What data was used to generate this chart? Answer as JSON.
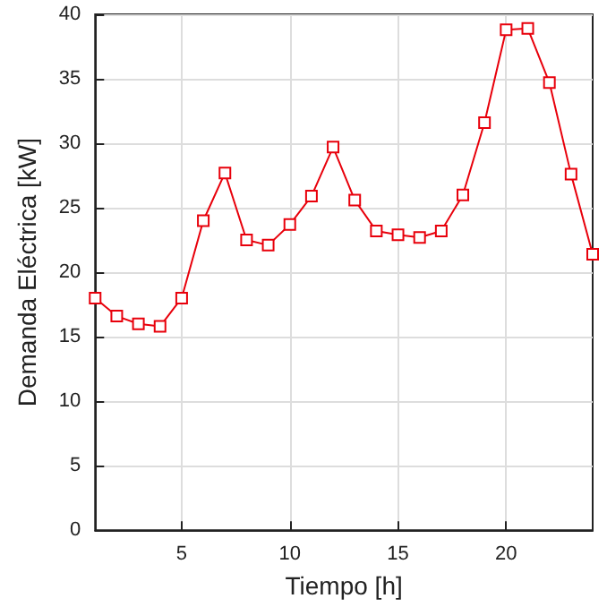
{
  "chart_data": {
    "type": "line",
    "xlabel": "Tiempo [h]",
    "ylabel": "Demanda Eléctrica [kW]",
    "x": [
      1,
      2,
      3,
      4,
      5,
      6,
      7,
      8,
      9,
      10,
      11,
      12,
      13,
      14,
      15,
      16,
      17,
      18,
      19,
      20,
      21,
      22,
      23,
      24
    ],
    "series": [
      {
        "color": "#e8000b",
        "values": [
          18,
          16.6,
          16,
          15.8,
          18,
          24,
          27.7,
          22.5,
          22.1,
          23.7,
          25.9,
          29.7,
          25.6,
          23.2,
          22.9,
          22.7,
          23.2,
          26,
          31.6,
          38.8,
          38.9,
          34.7,
          27.6,
          21.4
        ]
      }
    ],
    "xlim": [
      1,
      24
    ],
    "xticks": [
      5,
      10,
      15,
      20
    ],
    "ylim": [
      0,
      40
    ],
    "yticks": [
      0,
      5,
      10,
      15,
      20,
      25,
      30,
      35,
      40
    ],
    "grid": true,
    "marker": "square",
    "line_style": "solid"
  }
}
